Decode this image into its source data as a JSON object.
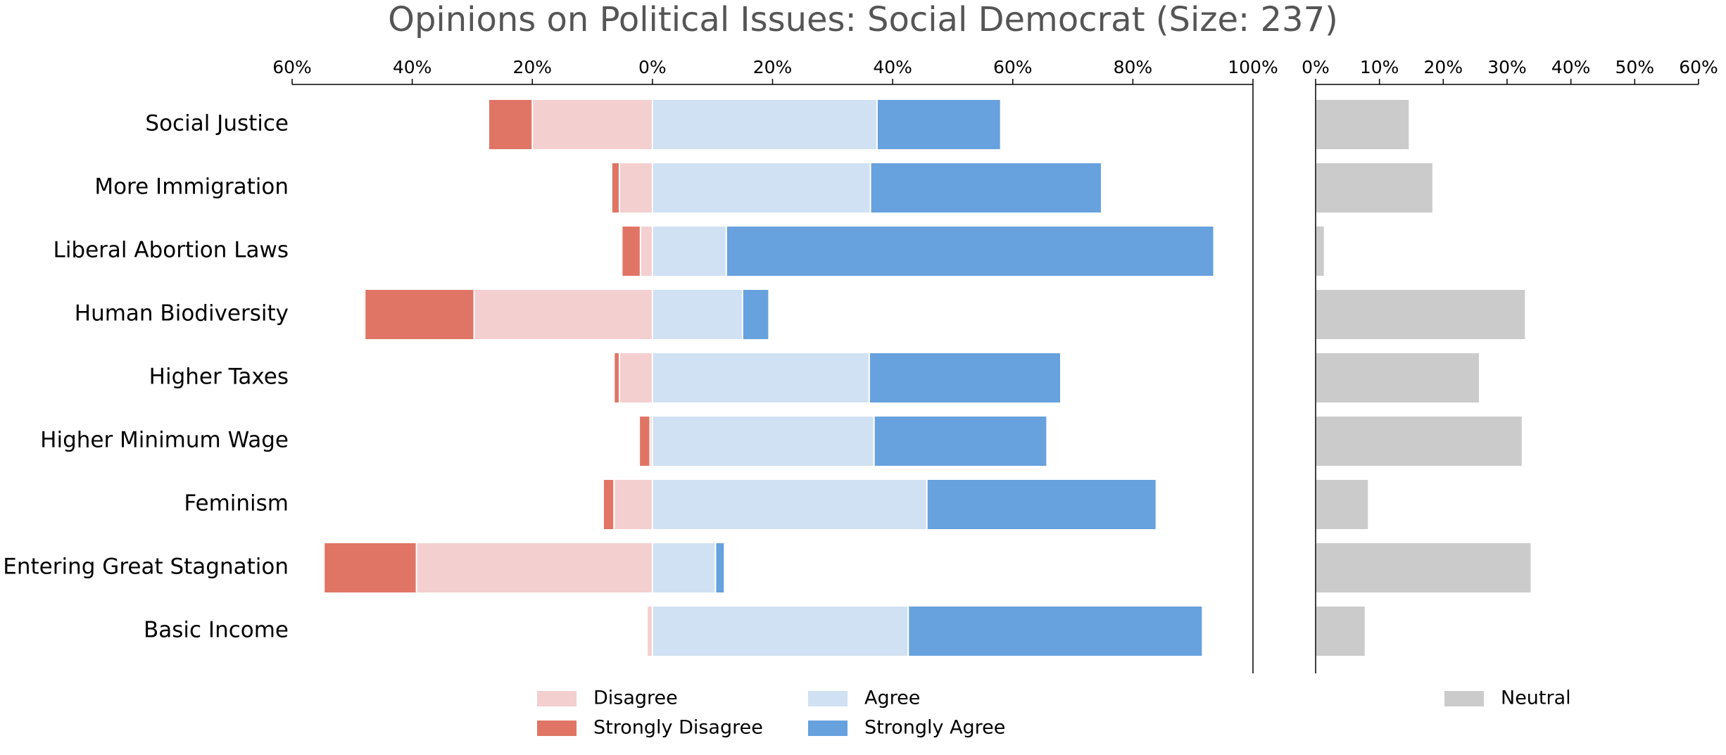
{
  "chart_data": [
    {
      "type": "diverging_bar",
      "title": "Opinions on Political Issues: Social Democrat (Size: 237)",
      "categories": [
        "Social Justice",
        "More Immigration",
        "Liberal Abortion Laws",
        "Human Biodiversity",
        "Higher Taxes",
        "Higher Minimum Wage",
        "Feminism",
        "Entering Great Stagnation",
        "Basic Income"
      ],
      "series": [
        {
          "name": "Disagree",
          "color": "#f4cfd0",
          "values": [
            -20.0,
            -5.5,
            -2.0,
            -29.7,
            -5.5,
            -0.4,
            -6.4,
            -39.3,
            -0.9
          ]
        },
        {
          "name": "Strongly Disagree",
          "color": "#e07565",
          "values": [
            -7.3,
            -1.3,
            -3.1,
            -18.2,
            -0.9,
            -1.8,
            -1.8,
            -15.4,
            0
          ]
        },
        {
          "name": "Agree",
          "color": "#d0e1f3",
          "values": [
            37.4,
            36.3,
            12.3,
            15.0,
            36.1,
            36.9,
            45.7,
            10.5,
            42.6
          ]
        },
        {
          "name": "Strongly Agree",
          "color": "#67a1de",
          "values": [
            20.6,
            38.5,
            81.2,
            4.4,
            31.9,
            28.8,
            38.2,
            1.5,
            49.0
          ]
        }
      ],
      "xlim": [
        -60,
        100
      ],
      "xticks": [
        {
          "value": -60,
          "label": "60%"
        },
        {
          "value": -40,
          "label": "40%"
        },
        {
          "value": -20,
          "label": "20%"
        },
        {
          "value": 0,
          "label": "0%"
        },
        {
          "value": 20,
          "label": "20%"
        },
        {
          "value": 40,
          "label": "40%"
        },
        {
          "value": 60,
          "label": "60%"
        },
        {
          "value": 80,
          "label": "80%"
        },
        {
          "value": 100,
          "label": "100%"
        }
      ]
    },
    {
      "type": "bar",
      "series": [
        {
          "name": "Neutral",
          "color": "#cbcbcb",
          "values": [
            14.7,
            18.4,
            1.4,
            32.9,
            25.7,
            32.4,
            8.3,
            33.8,
            7.8
          ]
        }
      ],
      "xlim": [
        0,
        60
      ],
      "xticks": [
        {
          "value": 0,
          "label": "0%"
        },
        {
          "value": 10,
          "label": "10%"
        },
        {
          "value": 20,
          "label": "20%"
        },
        {
          "value": 30,
          "label": "30%"
        },
        {
          "value": 40,
          "label": "40%"
        },
        {
          "value": 50,
          "label": "50%"
        },
        {
          "value": 60,
          "label": "60%"
        }
      ]
    }
  ]
}
